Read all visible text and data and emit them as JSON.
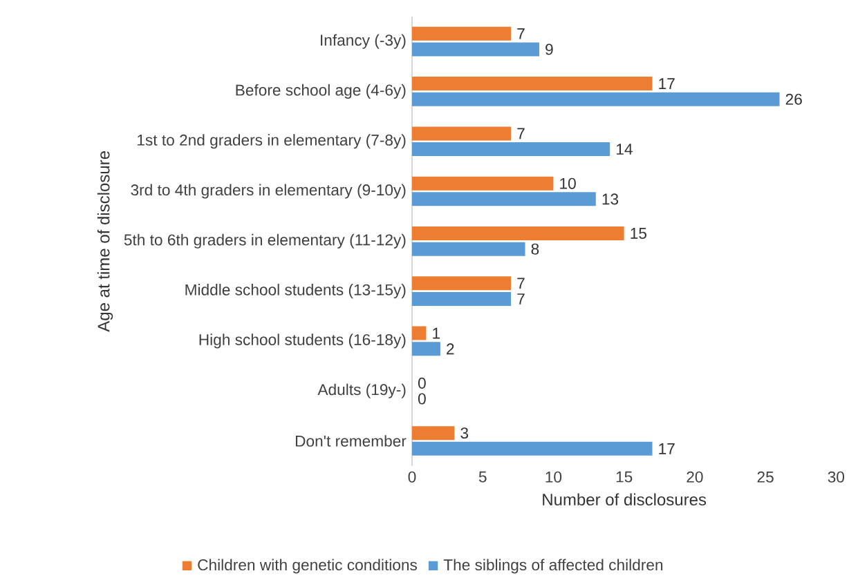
{
  "chart_data": {
    "type": "bar",
    "orientation": "horizontal",
    "xlabel": "Number of disclosures",
    "ylabel": "Age at time of disclosure",
    "categories": [
      "Infancy (-3y)",
      "Before school age (4-6y)",
      "1st to 2nd graders in elementary (7-8y)",
      "3rd to 4th graders in elementary (9-10y)",
      "5th to 6th graders in elementary (11-12y)",
      "Middle school students (13-15y)",
      "High school students (16-18y)",
      "Adults (19y-)",
      "Don't remember"
    ],
    "series": [
      {
        "name": "Children with genetic conditions",
        "color": "#ed7d31",
        "values": [
          7,
          17,
          7,
          10,
          15,
          7,
          1,
          0,
          3
        ]
      },
      {
        "name": "The siblings of affected children",
        "color": "#5b9bd5",
        "values": [
          9,
          26,
          14,
          13,
          8,
          7,
          2,
          0,
          17
        ]
      }
    ],
    "xlim": [
      0,
      30
    ],
    "xticks": [
      0,
      5,
      10,
      15,
      20,
      25,
      30
    ],
    "data_labels": true,
    "legend": "bottom"
  }
}
